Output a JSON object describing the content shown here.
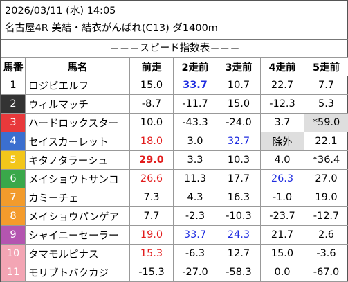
{
  "header": {
    "datetime": "2026/03/11 (水) 14:05",
    "race": "名古屋4R 美結・結衣がんばれ(C13) ダ1400m"
  },
  "caption": "＝＝＝スピード指数表＝＝＝",
  "columns": [
    "馬番",
    "馬名",
    "前走",
    "2走前",
    "3走前",
    "4走前",
    "5走前"
  ],
  "gate_colors": [
    "#ffffff",
    "#333333",
    "#e8393b",
    "#3b6fcf",
    "#f3c61a",
    "#3aa84a",
    "#f29b2c",
    "#f49b2c",
    "#b455b0",
    "#f3a5b4",
    "#f3a5b4"
  ],
  "rows": [
    {
      "num": "1",
      "name": "ロジピエルフ",
      "vals": [
        "15.0",
        "33.7",
        "10.7",
        "22.7",
        "7.7"
      ]
    },
    {
      "num": "2",
      "name": "ウィルマッチ",
      "vals": [
        "-8.7",
        "-11.7",
        "15.0",
        "-12.3",
        "5.3"
      ]
    },
    {
      "num": "3",
      "name": "ハードロックスター",
      "vals": [
        "10.0",
        "-43.3",
        "-24.0",
        "3.7",
        "*59.0"
      ]
    },
    {
      "num": "4",
      "name": "セイスカーレット",
      "vals": [
        "18.0",
        "3.0",
        "32.7",
        "除外",
        "22.1"
      ]
    },
    {
      "num": "5",
      "name": "キタノタラーシュ",
      "vals": [
        "29.0",
        "3.3",
        "10.3",
        "4.0",
        "*36.4"
      ]
    },
    {
      "num": "6",
      "name": "メイショウトサンコ",
      "vals": [
        "26.6",
        "11.3",
        "17.7",
        "26.3",
        "27.0"
      ]
    },
    {
      "num": "7",
      "name": "カミーチェ",
      "vals": [
        "7.3",
        "4.3",
        "16.3",
        "-1.0",
        "19.0"
      ]
    },
    {
      "num": "8",
      "name": "メイショウパンゲア",
      "vals": [
        "7.7",
        "-2.3",
        "-10.3",
        "-23.7",
        "-12.7"
      ]
    },
    {
      "num": "9",
      "name": "シャイニーセーラー",
      "vals": [
        "19.0",
        "33.7",
        "24.3",
        "21.7",
        "2.6"
      ]
    },
    {
      "num": "10",
      "name": "タマモルピナス",
      "vals": [
        "15.3",
        "-6.3",
        "12.7",
        "15.0",
        "-3.6"
      ]
    },
    {
      "num": "11",
      "name": "モリブトバクカジ",
      "vals": [
        "-15.3",
        "-27.0",
        "-58.3",
        "0.0",
        "-67.0"
      ]
    }
  ]
}
